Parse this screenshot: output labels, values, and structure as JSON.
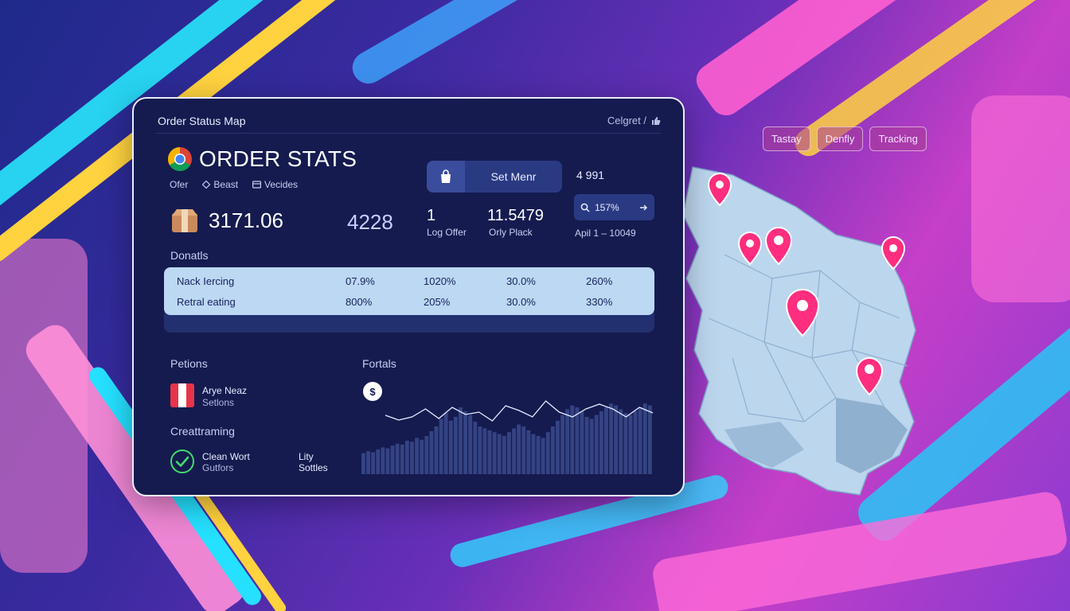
{
  "panel": {
    "title": "Order Status Map",
    "top_right": "Celgret /",
    "brand_title": "ORDER STATS",
    "subnav": [
      {
        "label": "Ofer",
        "icon": ""
      },
      {
        "label": "Beast",
        "icon": "diamond-icon"
      },
      {
        "label": "Vecides",
        "icon": "card-icon"
      }
    ],
    "main_value": "3171.06",
    "secondary_value": "4228",
    "set_button_label": "Set Menr",
    "stat_a": {
      "value": "1",
      "label": "Log Offer"
    },
    "stat_b": {
      "value": "11.5479",
      "label": "Orly Plack"
    },
    "side_number": "4 991",
    "search_pill": "157%",
    "date_range": "Apil 1 – 10049",
    "section_donations": "Donatls",
    "table_rows": [
      [
        "Nack Iercing",
        "07.9%",
        "1020%",
        "30.0%",
        "260%"
      ],
      [
        "Retral eating",
        "800%",
        "205%",
        "30.0%",
        "330%"
      ]
    ],
    "section_petitions": "Petions",
    "section_fortals": "Fortals",
    "person_name": "Arye Neaz",
    "person_sub": "Setlons",
    "section_creat": "Creattraming",
    "clean_title": "Clean Wort",
    "clean_sub": "Gutfors",
    "lity_title": "Lity",
    "lity_sub": "Sottles",
    "chart_badge": "$"
  },
  "chips": [
    "Tastay",
    "Denfly",
    "Tracking"
  ],
  "colors": {
    "accent_pink": "#ff2e7e",
    "panel_bg": "#151b4f",
    "table_bg": "#bcd8f2",
    "check_green": "#3fdc6f",
    "map_land": "#bcd6ee"
  },
  "chart_data": {
    "type": "area",
    "line_values": [
      48,
      54,
      50,
      40,
      52,
      38,
      47,
      44,
      55,
      36,
      42,
      50,
      30,
      44,
      50,
      40,
      34,
      40,
      50,
      38,
      45
    ],
    "bar_values": [
      22,
      24,
      23,
      26,
      28,
      27,
      30,
      32,
      31,
      35,
      34,
      38,
      36,
      40,
      45,
      50,
      58,
      64,
      56,
      60,
      70,
      66,
      62,
      55,
      50,
      48,
      46,
      44,
      42,
      40,
      44,
      48,
      52,
      50,
      46,
      42,
      40,
      38,
      44,
      50,
      56,
      62,
      68,
      72,
      70,
      66,
      60,
      58,
      62,
      66,
      70,
      74,
      72,
      68,
      64,
      62,
      66,
      70,
      74,
      72
    ],
    "ylim": [
      0,
      100
    ]
  }
}
